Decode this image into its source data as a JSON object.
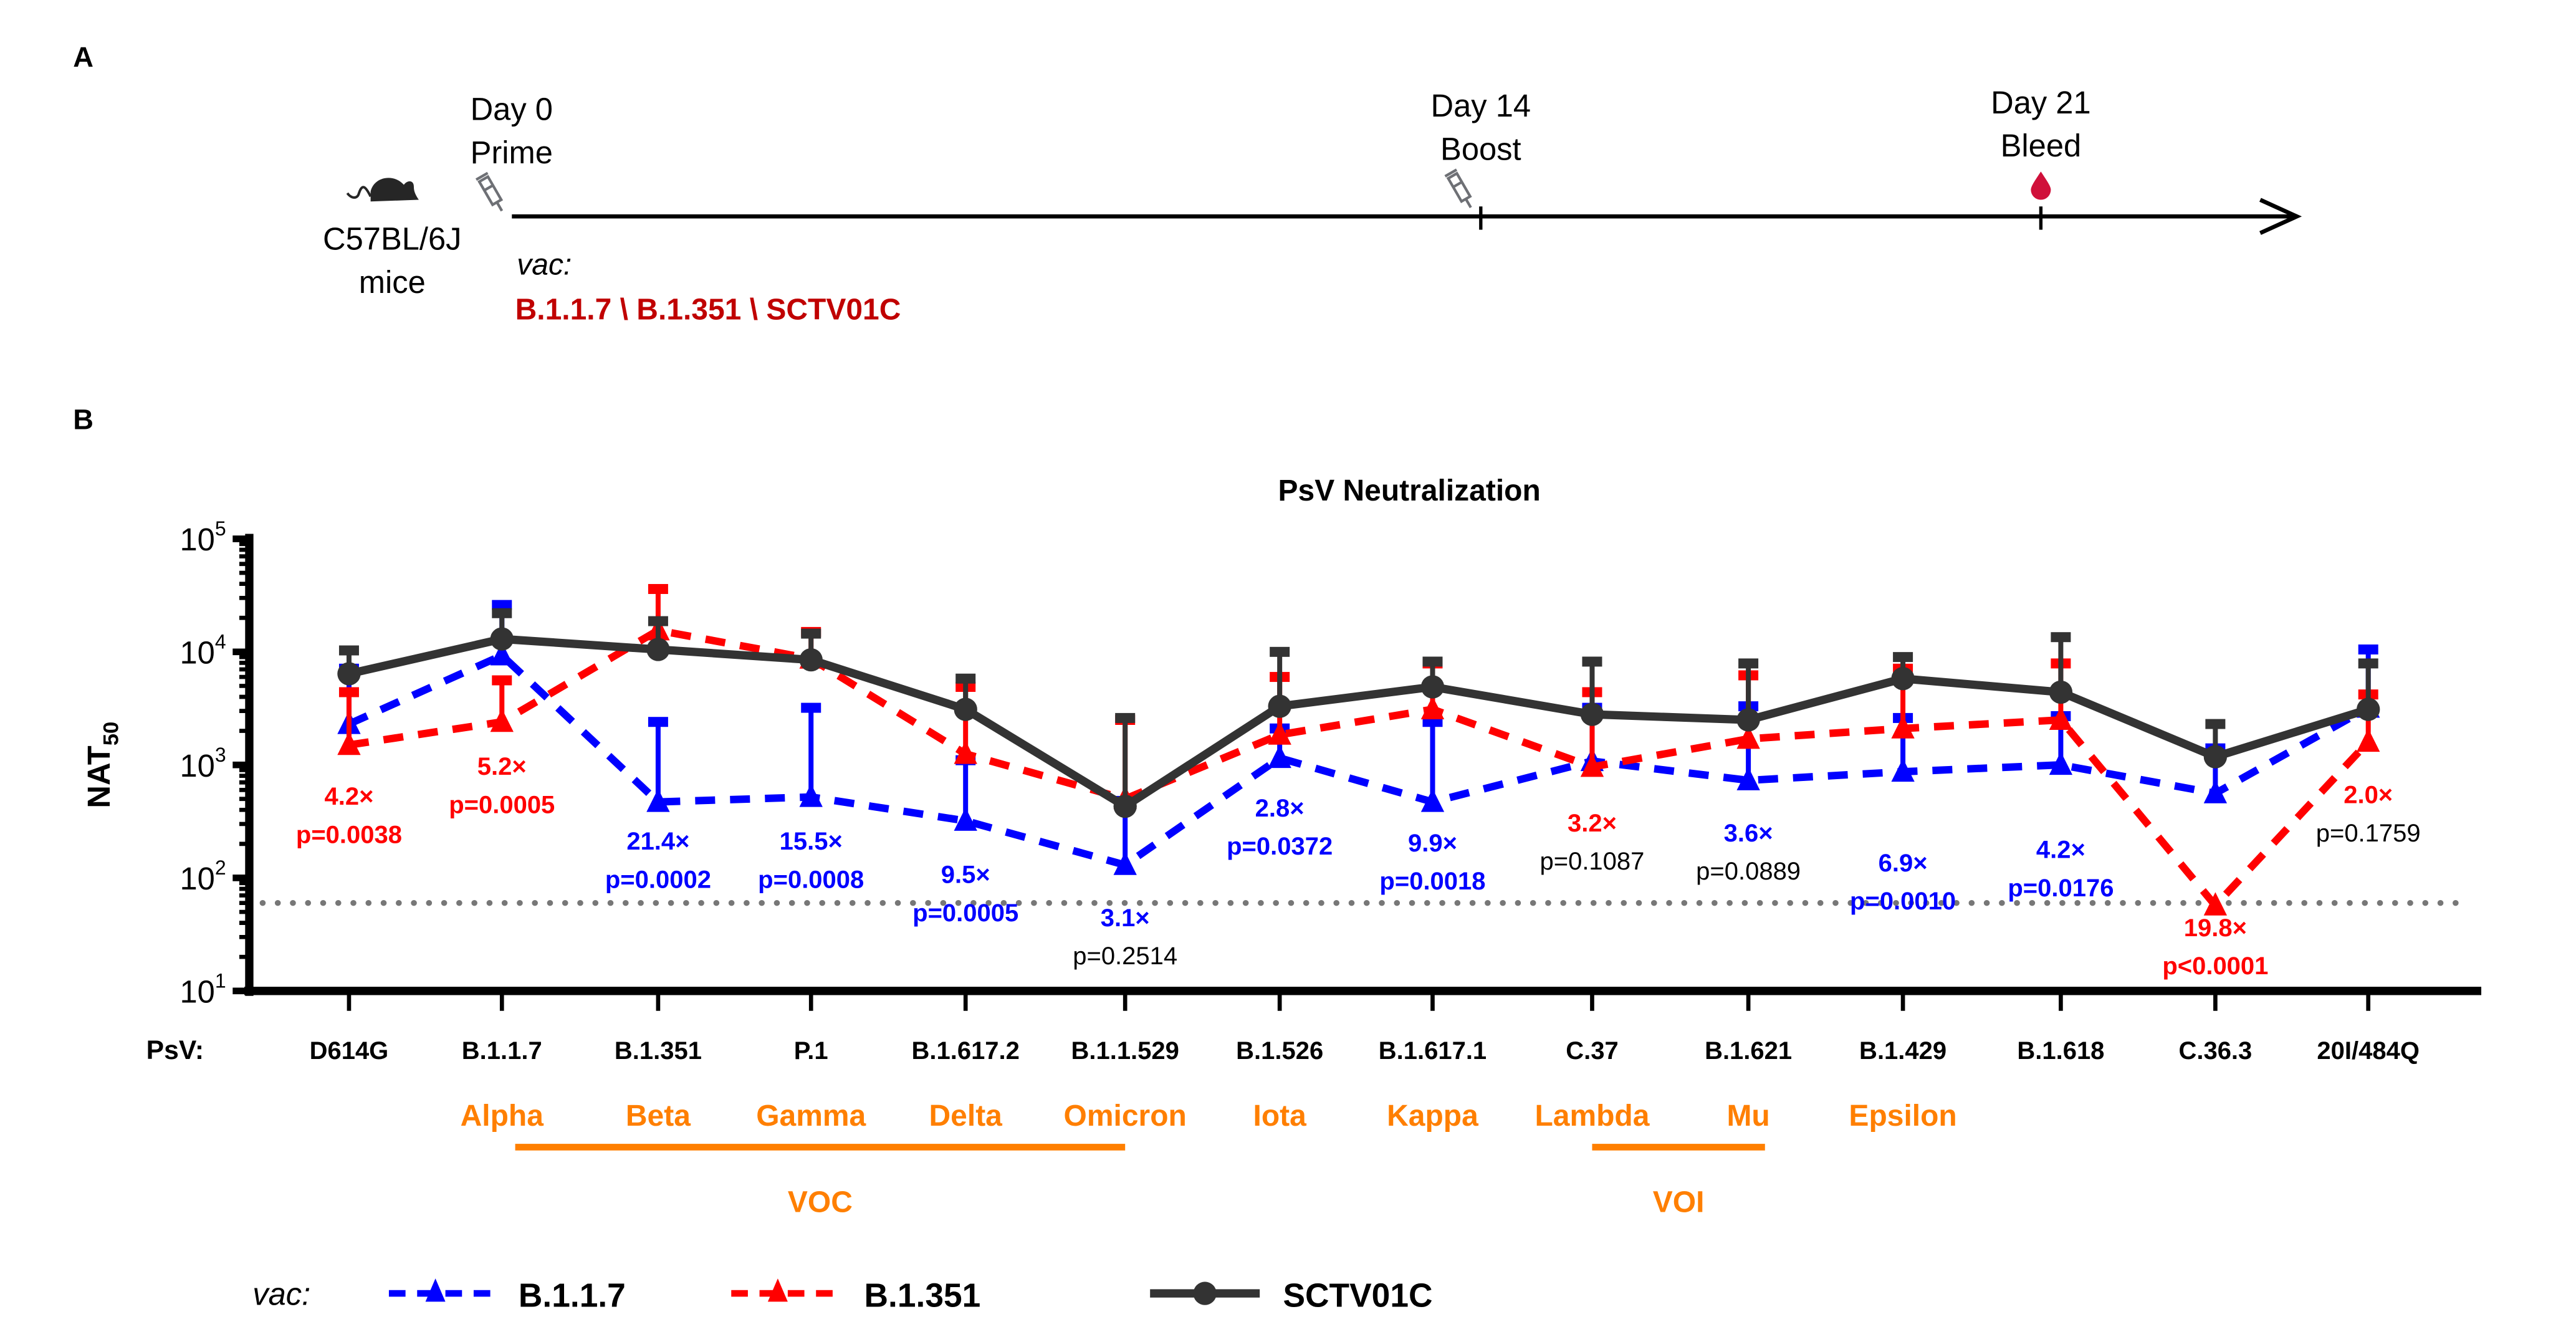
{
  "panel_a": {
    "label": "A",
    "mouse": {
      "line1": "C57BL/6J",
      "line2": "mice"
    },
    "day0": {
      "line1": "Day 0",
      "line2": "Prime"
    },
    "day14": {
      "line1": "Day 14",
      "line2": "Boost"
    },
    "day21": {
      "line1": "Day 21",
      "line2": "Bleed"
    },
    "vac_label": "vac:",
    "vaccines": "B.1.1.7 \\ B.1.351 \\ SCTV01C",
    "vaccine_color": "#c00000",
    "icons": [
      "mouse-icon",
      "syringe-icon",
      "syringe-icon",
      "blood-drop-icon"
    ]
  },
  "panel_b": {
    "label": "B"
  },
  "chart_data": {
    "type": "line",
    "title": "PsV Neutralization",
    "ylabel": "NAT",
    "ylabel_sub": "50",
    "yscale": "log",
    "ylim": [
      10,
      100000
    ],
    "yticks": [
      {
        "base": "10",
        "exp": "1"
      },
      {
        "base": "10",
        "exp": "2"
      },
      {
        "base": "10",
        "exp": "3"
      },
      {
        "base": "10",
        "exp": "4"
      },
      {
        "base": "10",
        "exp": "5"
      }
    ],
    "detection_limit": 60,
    "xlabel_prefix": "PsV:",
    "categories": [
      "D614G",
      "B.1.1.7",
      "B.1.351",
      "P.1",
      "B.1.617.2",
      "B.1.1.529",
      "B.1.526",
      "B.1.617.1",
      "C.37",
      "B.1.621",
      "B.1.429",
      "B.1.618",
      "C.36.3",
      "20I/484Q"
    ],
    "variant_names": [
      "",
      "Alpha",
      "Beta",
      "Gamma",
      "Delta",
      "Omicron",
      "Iota",
      "Kappa",
      "Lambda",
      "Mu",
      "Epsilon",
      "",
      "",
      ""
    ],
    "groups": [
      {
        "label": "VOC",
        "from": "B.1.1.7",
        "to": "B.1.1.529"
      },
      {
        "label": "VOI",
        "from": "C.37",
        "to": "B.1.621"
      }
    ],
    "group_color": "#ff7f00",
    "series": [
      {
        "name": "B.1.1.7",
        "color": "#0000ff",
        "marker": "triangle",
        "line": "dashed",
        "values": [
          2300,
          9300,
          470,
          520,
          320,
          130,
          1150,
          470,
          1080,
          730,
          870,
          1000,
          560,
          3200
        ],
        "upper_error": [
          7100,
          26000,
          2400,
          3200,
          1100,
          480,
          2100,
          2400,
          3200,
          3300,
          2600,
          2700,
          1400,
          10500
        ]
      },
      {
        "name": "B.1.351",
        "color": "#ff0000",
        "marker": "triangle",
        "line": "dashed",
        "values": [
          1500,
          2400,
          15500,
          8700,
          1250,
          500,
          1850,
          3100,
          960,
          1700,
          2100,
          2500,
          57,
          1600
        ],
        "upper_error": [
          4400,
          5600,
          36000,
          15000,
          4900,
          2500,
          6000,
          7900,
          4400,
          6200,
          7100,
          7900,
          null,
          4200
        ]
      },
      {
        "name": "SCTV01C",
        "color": "#333333",
        "marker": "circle",
        "line": "solid",
        "values": [
          6400,
          13000,
          10500,
          8500,
          3100,
          430,
          3300,
          4900,
          2800,
          2500,
          5800,
          4400,
          1180,
          3100
        ],
        "upper_error": [
          10300,
          22000,
          18700,
          14500,
          5800,
          2600,
          10000,
          8200,
          8200,
          7900,
          9000,
          13500,
          2300,
          7900
        ]
      }
    ],
    "annotations": [
      {
        "fold": "4.2×",
        "p": "p=0.0038",
        "fold_color": "#ff0000",
        "p_color": "#ff0000"
      },
      {
        "fold": "5.2×",
        "p": "p=0.0005",
        "fold_color": "#ff0000",
        "p_color": "#ff0000"
      },
      {
        "fold": "21.4×",
        "p": "p=0.0002",
        "fold_color": "#0000ff",
        "p_color": "#0000ff"
      },
      {
        "fold": "15.5×",
        "p": "p=0.0008",
        "fold_color": "#0000ff",
        "p_color": "#0000ff"
      },
      {
        "fold": "9.5×",
        "p": "p=0.0005",
        "fold_color": "#0000ff",
        "p_color": "#0000ff"
      },
      {
        "fold": "3.1×",
        "p": "p=0.2514",
        "fold_color": "#0000ff",
        "p_color": "#000000"
      },
      {
        "fold": "2.8×",
        "p": "p=0.0372",
        "fold_color": "#0000ff",
        "p_color": "#0000ff"
      },
      {
        "fold": "9.9×",
        "p": "p=0.0018",
        "fold_color": "#0000ff",
        "p_color": "#0000ff"
      },
      {
        "fold": "3.2×",
        "p": "p=0.1087",
        "fold_color": "#ff0000",
        "p_color": "#000000"
      },
      {
        "fold": "3.6×",
        "p": "p=0.0889",
        "fold_color": "#0000ff",
        "p_color": "#000000"
      },
      {
        "fold": "6.9×",
        "p": "p=0.0010",
        "fold_color": "#0000ff",
        "p_color": "#0000ff"
      },
      {
        "fold": "4.2×",
        "p": "p=0.0176",
        "fold_color": "#0000ff",
        "p_color": "#0000ff"
      },
      {
        "fold": "19.8×",
        "p": "p<0.0001",
        "fold_color": "#ff0000",
        "p_color": "#ff0000"
      },
      {
        "fold": "2.0×",
        "p": "p=0.1759",
        "fold_color": "#ff0000",
        "p_color": "#000000"
      }
    ],
    "legend": {
      "prefix": "vac:",
      "position": "bottom"
    }
  }
}
